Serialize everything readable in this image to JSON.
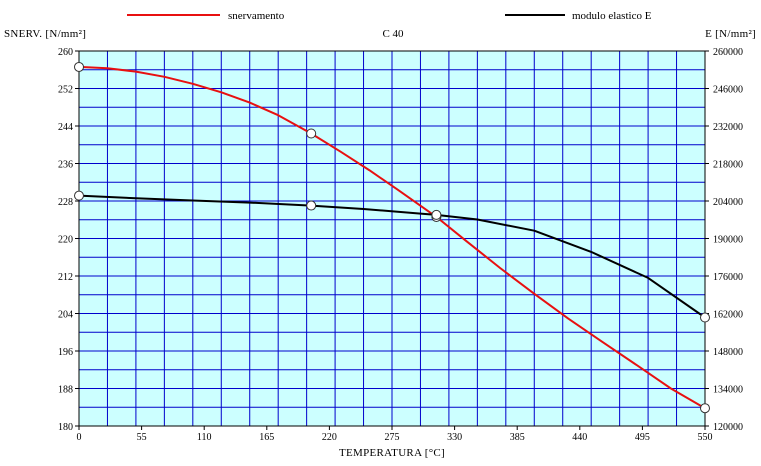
{
  "chart_data": {
    "type": "line",
    "title": "C 40",
    "xlabel": "TEMPERATURA [°C]",
    "ylabel_left": "SNERV. [N/mm²]",
    "ylabel_right": "E [N/mm²]",
    "xlim": [
      0,
      550
    ],
    "ylim_left": [
      180,
      260
    ],
    "ylim_right": [
      120000,
      260000
    ],
    "x_ticks": [
      0,
      55,
      110,
      165,
      220,
      275,
      330,
      385,
      440,
      495,
      550
    ],
    "x_tick_labels": [
      "0",
      "55",
      "110",
      "165",
      "220",
      "275",
      "330",
      "385",
      "440",
      "495",
      "550"
    ],
    "y_left_ticks": [
      180,
      188,
      196,
      204,
      212,
      220,
      228,
      236,
      244,
      252,
      260
    ],
    "y_left_tick_labels": [
      "180",
      "188",
      "196",
      "204",
      "212",
      "220",
      "228",
      "236",
      "244",
      "252",
      "260"
    ],
    "y_right_ticks": [
      120000,
      134000,
      148000,
      162000,
      176000,
      190000,
      204000,
      218000,
      232000,
      246000,
      260000
    ],
    "y_right_tick_labels": [
      "120000",
      "134000",
      "148000",
      "162000",
      "176000",
      "190000",
      "204000",
      "218000",
      "232000",
      "246000",
      "260000"
    ],
    "grid": true,
    "legend_position": "top",
    "series": [
      {
        "name": "snervamento",
        "color": "#e81010",
        "axis": "left",
        "x": [
          0,
          25,
          50,
          75,
          100,
          125,
          150,
          175,
          204,
          230,
          255,
          280,
          314,
          340,
          370,
          400,
          430,
          460,
          490,
          520,
          550
        ],
        "y": [
          256.6,
          256.3,
          255.6,
          254.5,
          253.0,
          251.2,
          249.0,
          246.3,
          242.4,
          238.5,
          234.6,
          230.4,
          224.6,
          219.5,
          213.7,
          208.2,
          202.9,
          197.9,
          193.0,
          188.0,
          183.8
        ],
        "markers": [
          [
            0,
            256.6
          ],
          [
            204,
            242.4
          ],
          [
            314,
            224.6
          ],
          [
            550,
            183.8
          ]
        ]
      },
      {
        "name": "modulo elastico E",
        "color": "#000000",
        "axis": "right",
        "x": [
          0,
          50,
          100,
          150,
          204,
          250,
          300,
          314,
          350,
          400,
          450,
          500,
          550
        ],
        "y": [
          206000,
          205000,
          204200,
          203400,
          202300,
          201000,
          199300,
          198800,
          197100,
          192900,
          185000,
          175300,
          160500
        ],
        "markers": [
          [
            0,
            206000
          ],
          [
            204,
            202300
          ],
          [
            314,
            198800
          ],
          [
            550,
            160500
          ]
        ]
      }
    ]
  }
}
